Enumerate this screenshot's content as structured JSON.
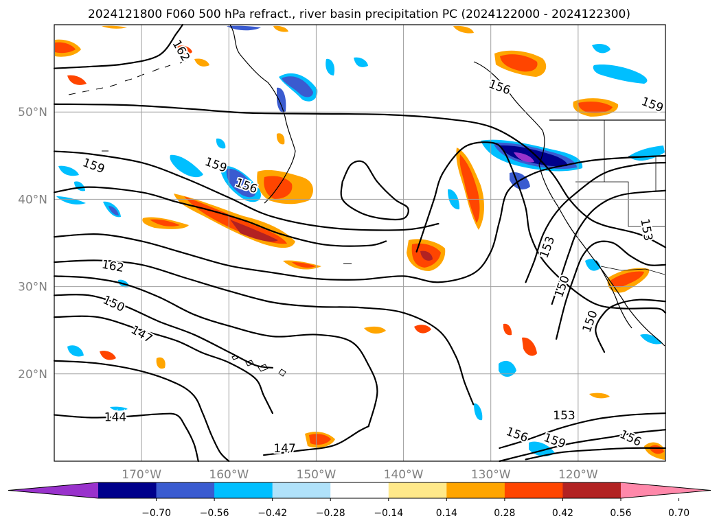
{
  "chart_data": {
    "type": "heatmap",
    "title": "2024121800 F060 500 hPa refract., river basin precipitation PC (2024122000 - 2024122300)",
    "map": {
      "lon_range": [
        -180,
        -110
      ],
      "lat_range": [
        10,
        60
      ],
      "lon_ticks": [
        -170,
        -160,
        -150,
        -140,
        -130,
        -120
      ],
      "lon_tick_labels": [
        "170°W",
        "160°W",
        "150°W",
        "140°W",
        "130°W",
        "120°W"
      ],
      "lat_ticks": [
        20,
        30,
        40,
        50
      ],
      "lat_tick_labels": [
        "20°N",
        "30°N",
        "40°N",
        "50°N"
      ],
      "grid": true,
      "coastlines": true
    },
    "colorbar": {
      "levels": [
        -0.84,
        -0.7,
        -0.56,
        -0.42,
        -0.28,
        -0.14,
        0.14,
        0.28,
        0.42,
        0.56,
        0.7,
        0.84
      ],
      "tick_values": [
        -0.7,
        -0.56,
        -0.42,
        -0.28,
        -0.14,
        0.14,
        0.28,
        0.42,
        0.56,
        0.7
      ],
      "tick_labels": [
        "−0.70",
        "−0.56",
        "−0.42",
        "−0.28",
        "−0.14",
        "0.14",
        "0.28",
        "0.42",
        "0.56",
        "0.70"
      ],
      "colors": [
        "#9932cc",
        "#00008b",
        "#3a5bd0",
        "#00bfff",
        "#b0e2fa",
        "#ffffff",
        "#ffe98a",
        "#ffa500",
        "#ff4500",
        "#b22222",
        "#ff88aa"
      ],
      "extend": "both",
      "orientation": "horizontal"
    },
    "contour_labels": [
      {
        "text": "162",
        "lon": -165.5,
        "lat": 57.0,
        "rot": 60
      },
      {
        "text": "156",
        "lon": -129.0,
        "lat": 52.8,
        "rot": 20
      },
      {
        "text": "159",
        "lon": -111.5,
        "lat": 50.8,
        "rot": 20
      },
      {
        "text": "159",
        "lon": -175.5,
        "lat": 43.8,
        "rot": 20
      },
      {
        "text": "159",
        "lon": -161.5,
        "lat": 43.9,
        "rot": 20
      },
      {
        "text": "156",
        "lon": -158.0,
        "lat": 41.5,
        "rot": 20
      },
      {
        "text": "162",
        "lon": -173.3,
        "lat": 32.3,
        "rot": 10
      },
      {
        "text": "150",
        "lon": -173.2,
        "lat": 28.0,
        "rot": 25
      },
      {
        "text": "147",
        "lon": -170.0,
        "lat": 24.5,
        "rot": 30
      },
      {
        "text": "144",
        "lon": -173.0,
        "lat": 15.0,
        "rot": 0
      },
      {
        "text": "147",
        "lon": -153.6,
        "lat": 11.4,
        "rot": 0
      },
      {
        "text": "153",
        "lon": -123.5,
        "lat": 34.5,
        "rot": -70
      },
      {
        "text": "150",
        "lon": -121.8,
        "lat": 30.0,
        "rot": -70
      },
      {
        "text": "150",
        "lon": -118.6,
        "lat": 26.0,
        "rot": -70
      },
      {
        "text": "153",
        "lon": -112.2,
        "lat": 36.5,
        "rot": 80
      },
      {
        "text": "153",
        "lon": -121.6,
        "lat": 15.2,
        "rot": 0
      },
      {
        "text": "156",
        "lon": -127.0,
        "lat": 13.0,
        "rot": 20
      },
      {
        "text": "159",
        "lon": -122.7,
        "lat": 12.3,
        "rot": 20
      },
      {
        "text": "156",
        "lon": -114.0,
        "lat": 12.6,
        "rot": 25
      }
    ],
    "contours": [
      [
        [
          -180,
          50.9
        ],
        [
          -172,
          50.8
        ],
        [
          -165,
          50.4
        ],
        [
          -158,
          49.9
        ],
        [
          -150,
          49.8
        ],
        [
          -142,
          49.7
        ],
        [
          -135,
          49.2
        ],
        [
          -130,
          48.3
        ],
        [
          -126,
          46.0
        ],
        [
          -123,
          43.0
        ],
        [
          -121,
          40.0
        ],
        [
          -119,
          38.0
        ],
        [
          -117,
          37.0
        ],
        [
          -113,
          36.0
        ],
        [
          -110,
          34.5
        ]
      ],
      [
        [
          -180,
          55.0
        ],
        [
          -176,
          55.2
        ],
        [
          -172,
          55.5
        ],
        [
          -168,
          56.5
        ],
        [
          -166,
          59.0
        ],
        [
          -165.3,
          60.0
        ]
      ],
      [
        [
          -180,
          45.5
        ],
        [
          -176,
          45.2
        ],
        [
          -170,
          44.2
        ],
        [
          -165,
          42.4
        ],
        [
          -160,
          40.2
        ],
        [
          -155,
          38.0
        ],
        [
          -148,
          36.7
        ],
        [
          -140,
          36.5
        ],
        [
          -136,
          37.2
        ]
      ],
      [
        [
          -180,
          40.8
        ],
        [
          -176,
          41.4
        ],
        [
          -170,
          40.8
        ],
        [
          -166,
          39.7
        ],
        [
          -162,
          38.7
        ],
        [
          -158,
          37.5
        ],
        [
          -154,
          36.0
        ],
        [
          -149,
          34.8
        ],
        [
          -144,
          34.7
        ],
        [
          -142,
          35.2
        ]
      ],
      [
        [
          -180,
          35.7
        ],
        [
          -175,
          36.0
        ],
        [
          -170,
          35.2
        ],
        [
          -165,
          33.8
        ],
        [
          -160,
          32.4
        ],
        [
          -155,
          31.6
        ],
        [
          -150,
          30.9
        ],
        [
          -145,
          30.8
        ],
        [
          -140,
          31.2
        ],
        [
          -136,
          30.5
        ],
        [
          -132,
          31.5
        ],
        [
          -130,
          34.0
        ],
        [
          -129,
          37.5
        ],
        [
          -128,
          41.0
        ],
        [
          -125,
          43.0
        ],
        [
          -121,
          44.0
        ],
        [
          -117,
          44.6
        ],
        [
          -110,
          45.0
        ]
      ],
      [
        [
          -180,
          32.8
        ],
        [
          -175,
          33.0
        ],
        [
          -170,
          32.5
        ],
        [
          -165,
          31.0
        ],
        [
          -160,
          29.5
        ],
        [
          -155,
          28.2
        ],
        [
          -150,
          27.7
        ],
        [
          -145,
          27.6
        ],
        [
          -140,
          27.0
        ],
        [
          -136,
          25.0
        ],
        [
          -134,
          22.0
        ],
        [
          -133,
          19.0
        ],
        [
          -132,
          16.5
        ]
      ],
      [
        [
          -180,
          31.2
        ],
        [
          -176,
          31.0
        ],
        [
          -172,
          30.3
        ],
        [
          -168,
          28.8
        ],
        [
          -164,
          26.8
        ],
        [
          -160,
          25.5
        ],
        [
          -155,
          24.3
        ],
        [
          -150,
          24.5
        ],
        [
          -146,
          23.7
        ],
        [
          -144,
          21.0
        ],
        [
          -143,
          18.0
        ],
        [
          -144,
          14.0
        ]
      ],
      [
        [
          -180,
          29.0
        ],
        [
          -176,
          29.0
        ],
        [
          -172,
          27.8
        ],
        [
          -168,
          26.0
        ],
        [
          -164,
          24.5
        ],
        [
          -160,
          22.5
        ],
        [
          -157,
          21.0
        ],
        [
          -155,
          20.7
        ]
      ],
      [
        [
          -180,
          26.5
        ],
        [
          -175,
          26.5
        ],
        [
          -170,
          25.0
        ],
        [
          -166,
          23.8
        ],
        [
          -163,
          22.4
        ],
        [
          -160,
          21.3
        ],
        [
          -157,
          19.5
        ],
        [
          -156,
          17.5
        ],
        [
          -155,
          15.5
        ]
      ],
      [
        [
          -180,
          21.5
        ],
        [
          -175,
          21.2
        ],
        [
          -170,
          20.3
        ],
        [
          -166,
          18.9
        ],
        [
          -164,
          17.5
        ],
        [
          -163,
          15.5
        ],
        [
          -162,
          13.0
        ],
        [
          -161,
          11.0
        ],
        [
          -160,
          10.0
        ]
      ],
      [
        [
          -180,
          15.3
        ],
        [
          -176,
          15.0
        ],
        [
          -172,
          15.1
        ],
        [
          -168,
          15.4
        ],
        [
          -166,
          15.3
        ],
        [
          -165,
          14.0
        ],
        [
          -164,
          12.0
        ],
        [
          -163.5,
          10.0
        ]
      ],
      [
        [
          -156,
          10.7
        ],
        [
          -152,
          11.2
        ],
        [
          -148,
          11.8
        ],
        [
          -145,
          13.5
        ],
        [
          -144,
          14.0
        ]
      ],
      [
        [
          -129,
          11.5
        ],
        [
          -126,
          12.4
        ],
        [
          -122,
          13.8
        ],
        [
          -118,
          14.8
        ],
        [
          -114,
          15.3
        ],
        [
          -110,
          15.5
        ]
      ],
      [
        [
          -129,
          10.0
        ],
        [
          -125,
          11.0
        ],
        [
          -121,
          12.0
        ],
        [
          -116,
          12.8
        ],
        [
          -113,
          13.3
        ],
        [
          -110,
          13.6
        ]
      ],
      [
        [
          -126,
          10.2
        ],
        [
          -122,
          11.0
        ],
        [
          -118,
          11.3
        ],
        [
          -114,
          11.5
        ],
        [
          -110,
          11.5
        ]
      ],
      [
        [
          -138.5,
          34.0
        ],
        [
          -137.5,
          37.0
        ],
        [
          -136.5,
          40.0
        ],
        [
          -135.5,
          43.0
        ],
        [
          -133,
          46.0
        ],
        [
          -130,
          46.5
        ],
        [
          -128.5,
          45.5
        ],
        [
          -127,
          42.0
        ],
        [
          -126,
          39.0
        ],
        [
          -125.5,
          36.0
        ],
        [
          -124,
          33.0
        ],
        [
          -121,
          30.0
        ],
        [
          -118,
          28.0
        ],
        [
          -115,
          27.5
        ],
        [
          -111,
          27.5
        ],
        [
          -110,
          27.0
        ]
      ],
      [
        [
          -126,
          30.5
        ],
        [
          -125,
          33.0
        ],
        [
          -124,
          36.0
        ],
        [
          -122.5,
          38.5
        ],
        [
          -120.5,
          40.5
        ],
        [
          -117,
          43.0
        ],
        [
          -113,
          44.0
        ],
        [
          -110,
          44.2
        ]
      ],
      [
        [
          -123,
          28.0
        ],
        [
          -122,
          31.0
        ],
        [
          -121,
          34.0
        ],
        [
          -120,
          36.5
        ],
        [
          -118,
          39.0
        ],
        [
          -115,
          40.5
        ],
        [
          -110,
          41.0
        ]
      ],
      [
        [
          -122.5,
          24.0
        ],
        [
          -121.5,
          28.0
        ],
        [
          -120.5,
          31.0
        ],
        [
          -119.5,
          33.5
        ],
        [
          -118,
          35.0
        ],
        [
          -116,
          35.0
        ],
        [
          -114,
          33.5
        ],
        [
          -112,
          32.5
        ],
        [
          -110,
          32.5
        ]
      ],
      [
        [
          -117,
          22.5
        ],
        [
          -118,
          25.0
        ],
        [
          -117,
          27.0
        ],
        [
          -115.5,
          28.0
        ],
        [
          -113,
          28.5
        ],
        [
          -110,
          28.3
        ]
      ],
      [
        [
          -147,
          42.0
        ],
        [
          -146,
          44.0
        ],
        [
          -144.5,
          44.2
        ],
        [
          -143,
          42.0
        ],
        [
          -141,
          40.0
        ],
        [
          -139.5,
          39.0
        ],
        [
          -140,
          37.8
        ],
        [
          -142.5,
          37.8
        ],
        [
          -145,
          38.5
        ],
        [
          -147,
          40.0
        ],
        [
          -147,
          42.0
        ]
      ]
    ]
  }
}
